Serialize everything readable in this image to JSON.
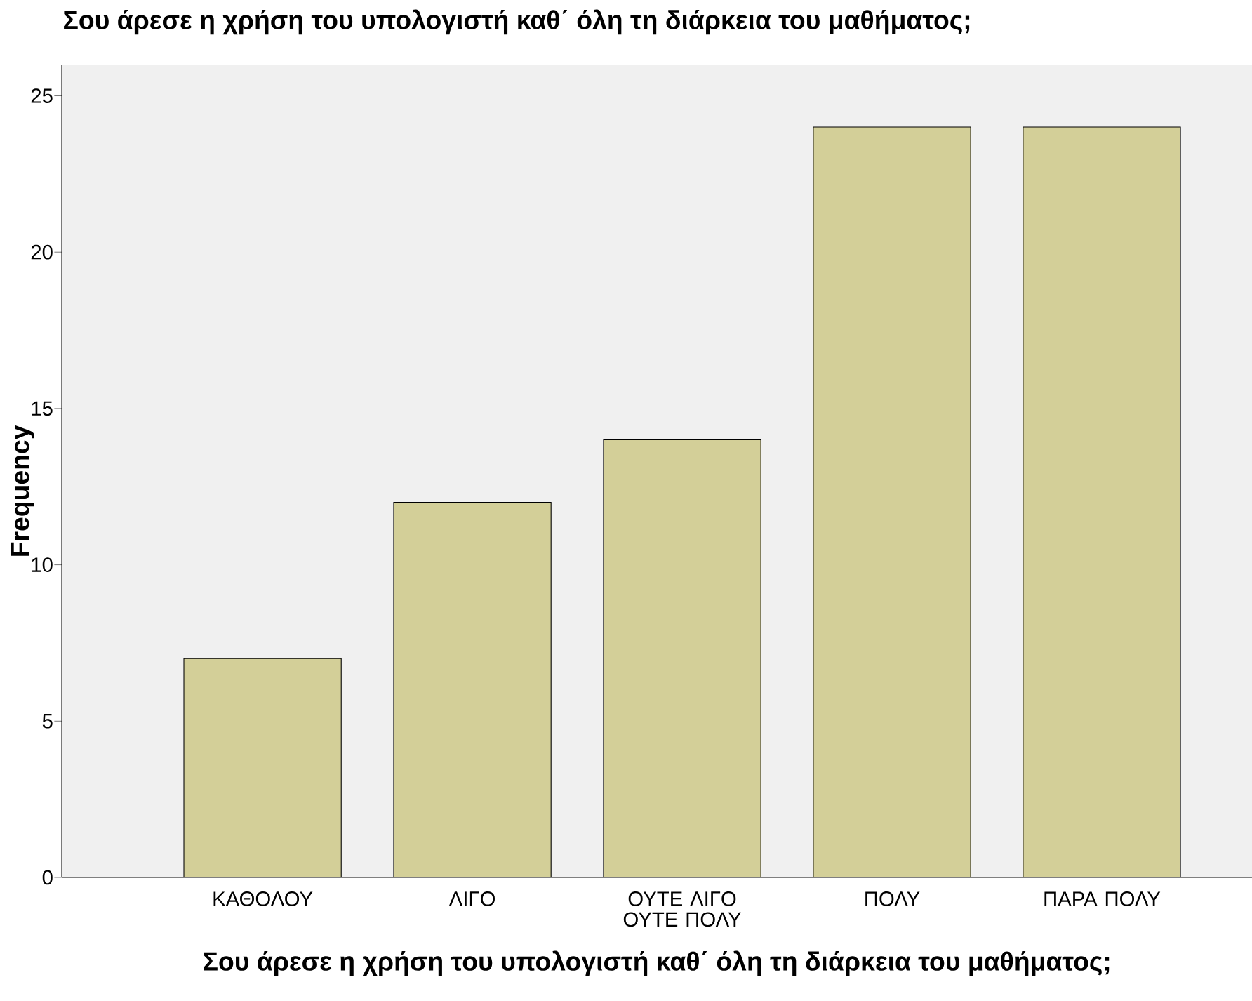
{
  "chart_data": {
    "type": "bar",
    "title": "Σου άρεσε η χρήση του υπολογιστή καθ΄ όλη τη διάρκεια του μαθήματος;",
    "xlabel": "Σου άρεσε η χρήση του υπολογιστή καθ΄ όλη τη διάρκεια του μαθήματος;",
    "ylabel": "Frequency",
    "categories": [
      "ΚΑΘΟΛΟΥ",
      "ΛΙΓΟ",
      "ΟΥΤΕ ΛΙΓΟ ΟΥΤΕ ΠΟΛΥ",
      "ΠΟΛΥ",
      "ΠΑΡΑ ΠΟΛΥ"
    ],
    "values": [
      7,
      12,
      14,
      24,
      24
    ],
    "color": "#d3cf98",
    "ylim": [
      0,
      26
    ],
    "yticks": [
      0,
      5,
      10,
      15,
      20,
      25
    ]
  }
}
